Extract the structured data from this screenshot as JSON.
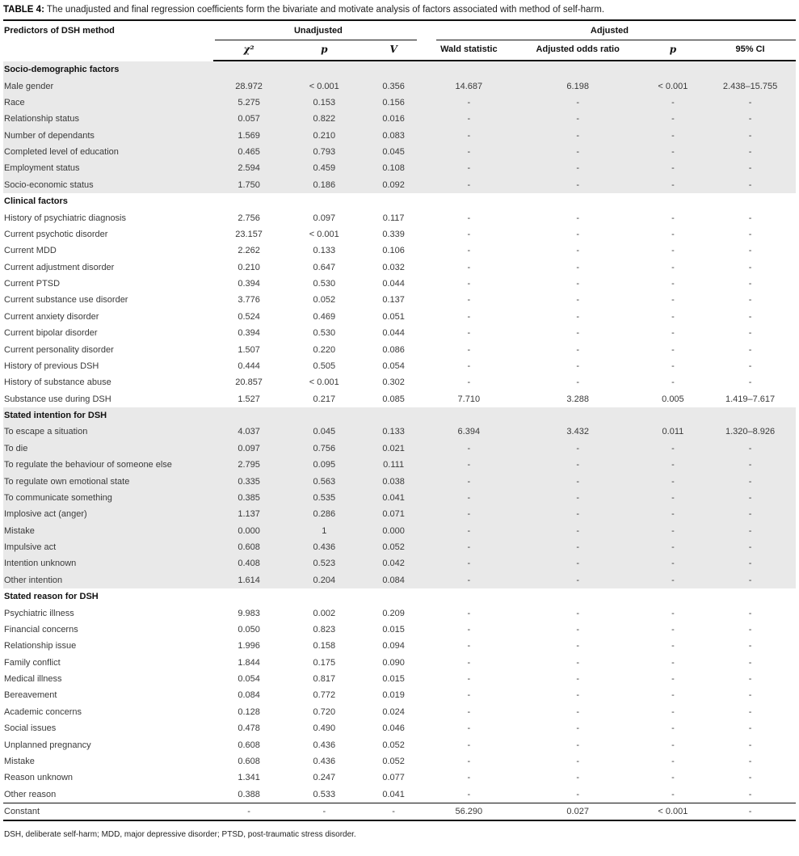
{
  "table": {
    "title_label": "TABLE 4:",
    "title_text": "The unadjusted and final regression coefficients form the bivariate and motivate analysis of factors associated with method of self-harm.",
    "header": {
      "predictor": "Predictors of DSH method",
      "unadjusted_group": "Unadjusted",
      "adjusted_group": "Adjusted",
      "subcols": [
        "χ²",
        "p",
        "V",
        "Wald statistic",
        "Adjusted odds ratio",
        "p",
        "95% CI"
      ]
    },
    "shaded_color": "#e9e9e9",
    "sections": [
      {
        "name": "Socio-demographic factors",
        "shaded": true,
        "rows": [
          {
            "label": "Male gender",
            "chi2": "28.972",
            "p": "< 0.001",
            "v": "0.356",
            "wald": "14.687",
            "aor": "6.198",
            "p_adj": "< 0.001",
            "ci": "2.438–15.755"
          },
          {
            "label": "Race",
            "chi2": "5.275",
            "p": "0.153",
            "v": "0.156",
            "wald": "-",
            "aor": "-",
            "p_adj": "-",
            "ci": "-"
          },
          {
            "label": "Relationship status",
            "chi2": "0.057",
            "p": "0.822",
            "v": "0.016",
            "wald": "-",
            "aor": "-",
            "p_adj": "-",
            "ci": "-"
          },
          {
            "label": "Number of dependants",
            "chi2": "1.569",
            "p": "0.210",
            "v": "0.083",
            "wald": "-",
            "aor": "-",
            "p_adj": "-",
            "ci": "-"
          },
          {
            "label": "Completed level of education",
            "chi2": "0.465",
            "p": "0.793",
            "v": "0.045",
            "wald": "-",
            "aor": "-",
            "p_adj": "-",
            "ci": "-"
          },
          {
            "label": "Employment status",
            "chi2": "2.594",
            "p": "0.459",
            "v": "0.108",
            "wald": "-",
            "aor": "-",
            "p_adj": "-",
            "ci": "-"
          },
          {
            "label": "Socio-economic status",
            "chi2": "1.750",
            "p": "0.186",
            "v": "0.092",
            "wald": "-",
            "aor": "-",
            "p_adj": "-",
            "ci": "-"
          }
        ]
      },
      {
        "name": "Clinical factors",
        "shaded": false,
        "rows": [
          {
            "label": "History of psychiatric diagnosis",
            "chi2": "2.756",
            "p": "0.097",
            "v": "0.117",
            "wald": "-",
            "aor": "-",
            "p_adj": "-",
            "ci": "-"
          },
          {
            "label": "Current psychotic disorder",
            "chi2": "23.157",
            "p": "< 0.001",
            "v": "0.339",
            "wald": "-",
            "aor": "-",
            "p_adj": "-",
            "ci": "-"
          },
          {
            "label": "Current MDD",
            "chi2": "2.262",
            "p": "0.133",
            "v": "0.106",
            "wald": "-",
            "aor": "-",
            "p_adj": "-",
            "ci": "-"
          },
          {
            "label": "Current adjustment disorder",
            "chi2": "0.210",
            "p": "0.647",
            "v": "0.032",
            "wald": "-",
            "aor": "-",
            "p_adj": "-",
            "ci": "-"
          },
          {
            "label": "Current PTSD",
            "chi2": "0.394",
            "p": "0.530",
            "v": "0.044",
            "wald": "-",
            "aor": "-",
            "p_adj": "-",
            "ci": "-"
          },
          {
            "label": "Current substance use disorder",
            "chi2": "3.776",
            "p": "0.052",
            "v": "0.137",
            "wald": "-",
            "aor": "-",
            "p_adj": "-",
            "ci": "-"
          },
          {
            "label": "Current anxiety disorder",
            "chi2": "0.524",
            "p": "0.469",
            "v": "0.051",
            "wald": "-",
            "aor": "-",
            "p_adj": "-",
            "ci": "-"
          },
          {
            "label": "Current bipolar disorder",
            "chi2": "0.394",
            "p": "0.530",
            "v": "0.044",
            "wald": "-",
            "aor": "-",
            "p_adj": "-",
            "ci": "-"
          },
          {
            "label": "Current personality disorder",
            "chi2": "1.507",
            "p": "0.220",
            "v": "0.086",
            "wald": "-",
            "aor": "-",
            "p_adj": "-",
            "ci": "-"
          },
          {
            "label": "History of previous DSH",
            "chi2": "0.444",
            "p": "0.505",
            "v": "0.054",
            "wald": "-",
            "aor": "-",
            "p_adj": "-",
            "ci": "-"
          },
          {
            "label": "History of substance abuse",
            "chi2": "20.857",
            "p": "< 0.001",
            "v": "0.302",
            "wald": "-",
            "aor": "-",
            "p_adj": "-",
            "ci": "-"
          },
          {
            "label": "Substance use during DSH",
            "chi2": "1.527",
            "p": "0.217",
            "v": "0.085",
            "wald": "7.710",
            "aor": "3.288",
            "p_adj": "0.005",
            "ci": "1.419–7.617"
          }
        ]
      },
      {
        "name": "Stated intention for DSH",
        "shaded": true,
        "rows": [
          {
            "label": "To escape a situation",
            "chi2": "4.037",
            "p": "0.045",
            "v": "0.133",
            "wald": "6.394",
            "aor": "3.432",
            "p_adj": "0.011",
            "ci": "1.320–8.926"
          },
          {
            "label": "To die",
            "chi2": "0.097",
            "p": "0.756",
            "v": "0.021",
            "wald": "-",
            "aor": "-",
            "p_adj": "-",
            "ci": "-"
          },
          {
            "label": "To regulate the behaviour of someone else",
            "chi2": "2.795",
            "p": "0.095",
            "v": "0.111",
            "wald": "-",
            "aor": "-",
            "p_adj": "-",
            "ci": "-"
          },
          {
            "label": "To regulate own emotional state",
            "chi2": "0.335",
            "p": "0.563",
            "v": "0.038",
            "wald": "-",
            "aor": "-",
            "p_adj": "-",
            "ci": "-"
          },
          {
            "label": "To communicate something",
            "chi2": "0.385",
            "p": "0.535",
            "v": "0.041",
            "wald": "-",
            "aor": "-",
            "p_adj": "-",
            "ci": "-"
          },
          {
            "label": "Implosive act (anger)",
            "chi2": "1.137",
            "p": "0.286",
            "v": "0.071",
            "wald": "-",
            "aor": "-",
            "p_adj": "-",
            "ci": "-"
          },
          {
            "label": "Mistake",
            "chi2": "0.000",
            "p": "1",
            "v": "0.000",
            "wald": "-",
            "aor": "-",
            "p_adj": "-",
            "ci": "-"
          },
          {
            "label": "Impulsive act",
            "chi2": "0.608",
            "p": "0.436",
            "v": "0.052",
            "wald": "-",
            "aor": "-",
            "p_adj": "-",
            "ci": "-"
          },
          {
            "label": "Intention unknown",
            "chi2": "0.408",
            "p": "0.523",
            "v": "0.042",
            "wald": "-",
            "aor": "-",
            "p_adj": "-",
            "ci": "-"
          },
          {
            "label": "Other intention",
            "chi2": "1.614",
            "p": "0.204",
            "v": "0.084",
            "wald": "-",
            "aor": "-",
            "p_adj": "-",
            "ci": "-"
          }
        ]
      },
      {
        "name": "Stated reason for DSH",
        "shaded": false,
        "rows": [
          {
            "label": "Psychiatric illness",
            "chi2": "9.983",
            "p": "0.002",
            "v": "0.209",
            "wald": "-",
            "aor": "-",
            "p_adj": "-",
            "ci": "-"
          },
          {
            "label": "Financial concerns",
            "chi2": "0.050",
            "p": "0.823",
            "v": "0.015",
            "wald": "-",
            "aor": "-",
            "p_adj": "-",
            "ci": "-"
          },
          {
            "label": "Relationship issue",
            "chi2": "1.996",
            "p": "0.158",
            "v": "0.094",
            "wald": "-",
            "aor": "-",
            "p_adj": "-",
            "ci": "-"
          },
          {
            "label": "Family conflict",
            "chi2": "1.844",
            "p": "0.175",
            "v": "0.090",
            "wald": "-",
            "aor": "-",
            "p_adj": "-",
            "ci": "-"
          },
          {
            "label": "Medical illness",
            "chi2": "0.054",
            "p": "0.817",
            "v": "0.015",
            "wald": "-",
            "aor": "-",
            "p_adj": "-",
            "ci": "-"
          },
          {
            "label": "Bereavement",
            "chi2": "0.084",
            "p": "0.772",
            "v": "0.019",
            "wald": "-",
            "aor": "-",
            "p_adj": "-",
            "ci": "-"
          },
          {
            "label": "Academic concerns",
            "chi2": "0.128",
            "p": "0.720",
            "v": "0.024",
            "wald": "-",
            "aor": "-",
            "p_adj": "-",
            "ci": "-"
          },
          {
            "label": "Social issues",
            "chi2": "0.478",
            "p": "0.490",
            "v": "0.046",
            "wald": "-",
            "aor": "-",
            "p_adj": "-",
            "ci": "-"
          },
          {
            "label": "Unplanned pregnancy",
            "chi2": "0.608",
            "p": "0.436",
            "v": "0.052",
            "wald": "-",
            "aor": "-",
            "p_adj": "-",
            "ci": "-"
          },
          {
            "label": "Mistake",
            "chi2": "0.608",
            "p": "0.436",
            "v": "0.052",
            "wald": "-",
            "aor": "-",
            "p_adj": "-",
            "ci": "-"
          },
          {
            "label": "Reason unknown",
            "chi2": "1.341",
            "p": "0.247",
            "v": "0.077",
            "wald": "-",
            "aor": "-",
            "p_adj": "-",
            "ci": "-"
          },
          {
            "label": "Other reason",
            "chi2": "0.388",
            "p": "0.533",
            "v": "0.041",
            "wald": "-",
            "aor": "-",
            "p_adj": "-",
            "ci": "-"
          }
        ]
      }
    ],
    "constant_row": {
      "label": "Constant",
      "chi2": "-",
      "p": "-",
      "v": "-",
      "wald": "56.290",
      "aor": "0.027",
      "p_adj": "< 0.001",
      "ci": "-"
    },
    "footnote": "DSH, deliberate self-harm; MDD, major depressive disorder; PTSD, post-traumatic stress disorder."
  }
}
